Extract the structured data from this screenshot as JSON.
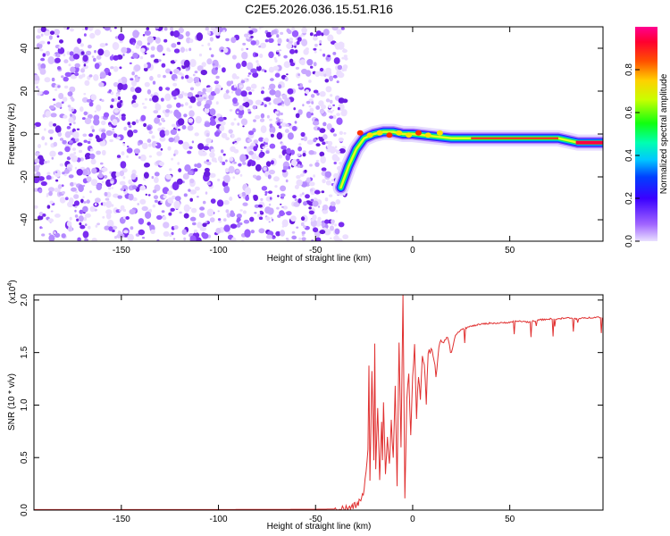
{
  "title": "C2E5.2026.036.15.51.R16",
  "chart_data": [
    {
      "type": "heatmap",
      "name": "spectrogram",
      "xlabel": "Height of straight line (km)",
      "ylabel": "Frequency (Hz)",
      "xlim": [
        -195,
        98
      ],
      "ylim": [
        -50,
        50
      ],
      "xticks": [
        -150,
        -100,
        -50,
        0,
        50
      ],
      "yticks": [
        -40,
        -20,
        0,
        20,
        40
      ],
      "noise_region_x": [
        -195,
        -37
      ],
      "signal_ridge": {
        "x": [
          -37,
          -33,
          -29,
          -25,
          -20,
          -15,
          -10,
          -5,
          0,
          10,
          20,
          40,
          60,
          75,
          80,
          85,
          98
        ],
        "freq": [
          -25,
          -15,
          -7,
          -2,
          0,
          1,
          1,
          0,
          0,
          -1,
          -2,
          -2,
          -2,
          -2,
          -3,
          -4,
          -4
        ]
      },
      "colorbar": {
        "label": "Normalized spectral amplitude",
        "ticks": [
          "0.0",
          "0.2",
          "0.4",
          "0.6",
          "0.8"
        ],
        "range": [
          0,
          1
        ]
      }
    },
    {
      "type": "line",
      "name": "snr",
      "xlabel": "Height of straight line (km)",
      "ylabel": "SNR (10 * v/v)",
      "y_multiplier_label": "(x10",
      "y_multiplier_exp": "4",
      "y_multiplier_close": ")",
      "xlim": [
        -195,
        98
      ],
      "ylim": [
        0,
        2.05
      ],
      "xticks": [
        -150,
        -100,
        -50,
        0,
        50
      ],
      "yticks": [
        "0.0",
        "0.5",
        "1.0",
        "1.5",
        "2.0"
      ],
      "series": [
        {
          "name": "SNR",
          "color": "#e03030",
          "x": [
            -195,
            -100,
            -50,
            -38,
            -32,
            -28,
            -25,
            -23,
            -22.5,
            -22,
            -21,
            -20,
            -19.5,
            -19,
            -18,
            -17,
            -16,
            -15.5,
            -15,
            -14,
            -13,
            -12,
            -11,
            -10,
            -9,
            -8,
            -7,
            -6,
            -5,
            -4,
            -3,
            -2,
            -1,
            0,
            1,
            2,
            3,
            4,
            5,
            6,
            7,
            8,
            10,
            12,
            14,
            16,
            18,
            20,
            22,
            25,
            30,
            35,
            40,
            45,
            50,
            55,
            60,
            65,
            70,
            75,
            80,
            85,
            90,
            95,
            98
          ],
          "y": [
            0.005,
            0.005,
            0.008,
            0.01,
            0.02,
            0.06,
            0.18,
            0.55,
            1.35,
            0.3,
            1.32,
            0.5,
            1.6,
            0.4,
            0.95,
            0.3,
            0.85,
            0.5,
            1.03,
            0.35,
            0.7,
            0.45,
            0.85,
            0.5,
            1.15,
            0.25,
            1.6,
            0.6,
            2.05,
            0.1,
            1.05,
            1.3,
            0.7,
            1.25,
            1.55,
            0.9,
            1.3,
            1.05,
            1.45,
            1.4,
            1.0,
            1.5,
            1.55,
            1.3,
            1.6,
            1.6,
            1.65,
            1.5,
            1.67,
            1.72,
            1.75,
            1.77,
            1.78,
            1.78,
            1.79,
            1.8,
            1.79,
            1.81,
            1.82,
            1.82,
            1.83,
            1.82,
            1.83,
            1.84,
            1.82
          ]
        }
      ]
    }
  ]
}
